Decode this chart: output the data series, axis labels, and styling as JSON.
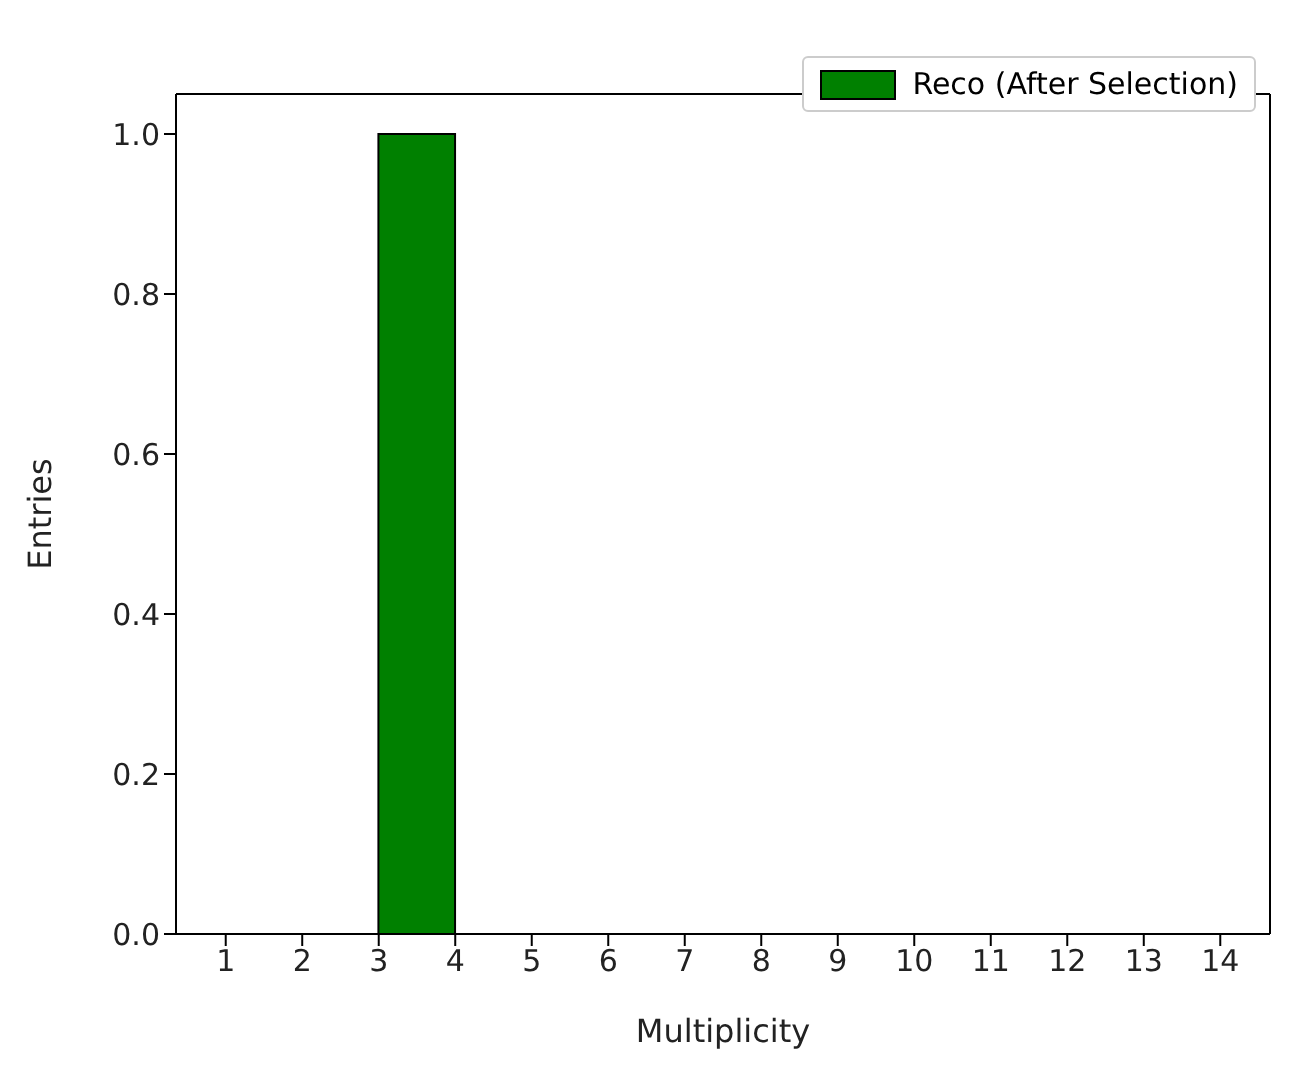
{
  "chart_data": {
    "type": "histogram",
    "xlabel": "Multiplicity",
    "ylabel": "Entries",
    "bins": [
      1,
      2,
      3,
      4,
      5,
      6,
      7,
      8,
      9,
      10,
      11,
      12,
      13,
      14
    ],
    "series": [
      {
        "name": "Reco (After Selection)",
        "color": "#008000",
        "values": [
          0,
          0,
          1,
          0,
          0,
          0,
          0,
          0,
          0,
          0,
          0,
          0,
          0
        ]
      }
    ],
    "xlim": [
      0.35,
      14.65
    ],
    "xticks": [
      1,
      2,
      3,
      4,
      5,
      6,
      7,
      8,
      9,
      10,
      11,
      12,
      13,
      14
    ],
    "ylim": [
      0,
      1.05
    ],
    "yticks": [
      {
        "value": 0,
        "label": "0.0"
      },
      {
        "value": 0.2,
        "label": "0.2"
      },
      {
        "value": 0.4,
        "label": "0.4"
      },
      {
        "value": 0.6,
        "label": "0.6"
      },
      {
        "value": 0.8,
        "label": "0.8"
      },
      {
        "value": 1,
        "label": "1.0"
      }
    ],
    "legend": "top right"
  }
}
